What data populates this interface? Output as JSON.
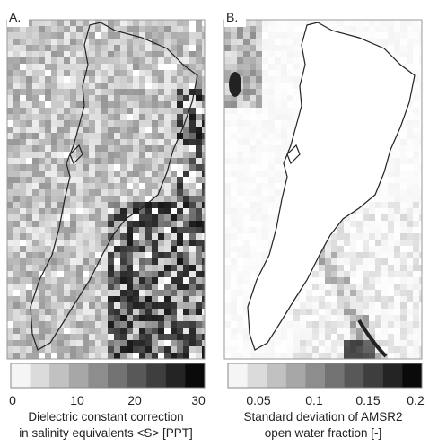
{
  "panels": [
    {
      "label": "A.",
      "colorbar": {
        "ticks": [
          "0",
          "10",
          "20",
          "30"
        ]
      },
      "caption": [
        "Dielectric constant correction",
        "in salinity equivalents <S> [PPT]"
      ]
    },
    {
      "label": "B.",
      "colorbar": {
        "ticks": [
          "0.05",
          "0.1",
          "0.15",
          "0.2"
        ]
      },
      "caption": [
        "Standard deviation of AMSR2",
        "open water fraction [-]"
      ]
    }
  ]
}
